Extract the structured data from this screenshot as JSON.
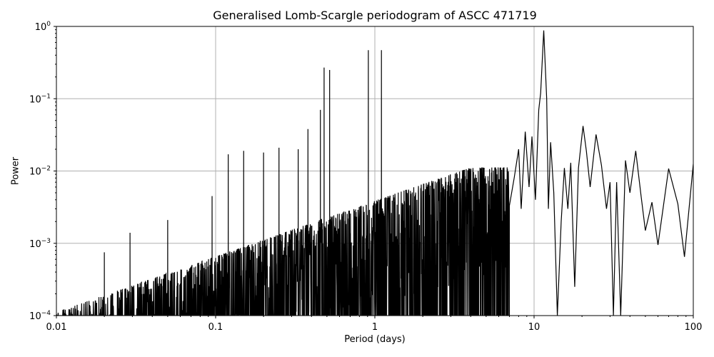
{
  "chart_data": {
    "type": "line",
    "title": "Generalised Lomb-Scargle periodogram of ASCC 471719",
    "xlabel": "Period (days)",
    "ylabel": "Power",
    "xscale": "log",
    "yscale": "log",
    "xlim": [
      0.01,
      100
    ],
    "ylim": [
      0.0001,
      1
    ],
    "grid": true,
    "legend": null,
    "x_ticks": [
      {
        "value": 0.01,
        "label": "0.01"
      },
      {
        "value": 0.1,
        "label": "0.1"
      },
      {
        "value": 1,
        "label": "1"
      },
      {
        "value": 10,
        "label": "10"
      },
      {
        "value": 100,
        "label": "100"
      }
    ],
    "y_ticks": [
      {
        "value": 1,
        "base": "10",
        "exp": "0"
      },
      {
        "value": 0.1,
        "base": "10",
        "exp": "−1"
      },
      {
        "value": 0.01,
        "base": "10",
        "exp": "−2"
      },
      {
        "value": 0.001,
        "base": "10",
        "exp": "−3"
      },
      {
        "value": 0.0001,
        "base": "10",
        "exp": "−4"
      }
    ],
    "line_color": "#000000",
    "grid_color": "#b0b0b0",
    "notable_peaks": [
      {
        "period": 11.5,
        "power": 0.88
      },
      {
        "period": 0.91,
        "power": 0.47
      },
      {
        "period": 1.1,
        "power": 0.47
      },
      {
        "period": 0.48,
        "power": 0.27
      },
      {
        "period": 0.52,
        "power": 0.25
      },
      {
        "period": 0.455,
        "power": 0.07
      },
      {
        "period": 0.38,
        "power": 0.038
      },
      {
        "period": 0.33,
        "power": 0.02
      },
      {
        "period": 0.25,
        "power": 0.021
      },
      {
        "period": 0.2,
        "power": 0.018
      },
      {
        "period": 0.15,
        "power": 0.019
      },
      {
        "period": 0.12,
        "power": 0.017
      },
      {
        "period": 0.095,
        "power": 0.0045
      },
      {
        "period": 0.05,
        "power": 0.0021
      },
      {
        "period": 0.029,
        "power": 0.0014
      },
      {
        "period": 0.02,
        "power": 0.00075
      }
    ],
    "smooth_tail": [
      {
        "period": 7.0,
        "power": 0.0001
      },
      {
        "period": 7.5,
        "power": 0.008
      },
      {
        "period": 8.0,
        "power": 0.02
      },
      {
        "period": 8.3,
        "power": 0.003
      },
      {
        "period": 8.8,
        "power": 0.035
      },
      {
        "period": 9.3,
        "power": 0.006
      },
      {
        "period": 9.7,
        "power": 0.03
      },
      {
        "period": 10.2,
        "power": 0.004
      },
      {
        "period": 10.7,
        "power": 0.07
      },
      {
        "period": 11.0,
        "power": 0.12
      },
      {
        "period": 11.5,
        "power": 0.88
      },
      {
        "period": 12.0,
        "power": 0.1
      },
      {
        "period": 12.3,
        "power": 0.003
      },
      {
        "period": 12.7,
        "power": 0.025
      },
      {
        "period": 13.3,
        "power": 0.005
      },
      {
        "period": 14.0,
        "power": 0.0001
      },
      {
        "period": 14.8,
        "power": 0.002
      },
      {
        "period": 15.5,
        "power": 0.011
      },
      {
        "period": 16.3,
        "power": 0.003
      },
      {
        "period": 17.0,
        "power": 0.013
      },
      {
        "period": 18.0,
        "power": 0.00025
      },
      {
        "period": 19.0,
        "power": 0.011
      },
      {
        "period": 20.3,
        "power": 0.042
      },
      {
        "period": 21.3,
        "power": 0.019
      },
      {
        "period": 22.5,
        "power": 0.006
      },
      {
        "period": 24.5,
        "power": 0.032
      },
      {
        "period": 26.5,
        "power": 0.012
      },
      {
        "period": 28.5,
        "power": 0.003
      },
      {
        "period": 30.0,
        "power": 0.007
      },
      {
        "period": 31.5,
        "power": 0.0001
      },
      {
        "period": 33.0,
        "power": 0.007
      },
      {
        "period": 35.0,
        "power": 0.0001
      },
      {
        "period": 37.5,
        "power": 0.014
      },
      {
        "period": 40.0,
        "power": 0.005
      },
      {
        "period": 43.5,
        "power": 0.019
      },
      {
        "period": 47.0,
        "power": 0.0045
      },
      {
        "period": 50.0,
        "power": 0.0015
      },
      {
        "period": 55.0,
        "power": 0.0037
      },
      {
        "period": 60.0,
        "power": 0.00095
      },
      {
        "period": 70.0,
        "power": 0.0108
      },
      {
        "period": 80.0,
        "power": 0.0035
      },
      {
        "period": 88.0,
        "power": 0.00065
      },
      {
        "period": 100.0,
        "power": 0.0125
      }
    ]
  }
}
